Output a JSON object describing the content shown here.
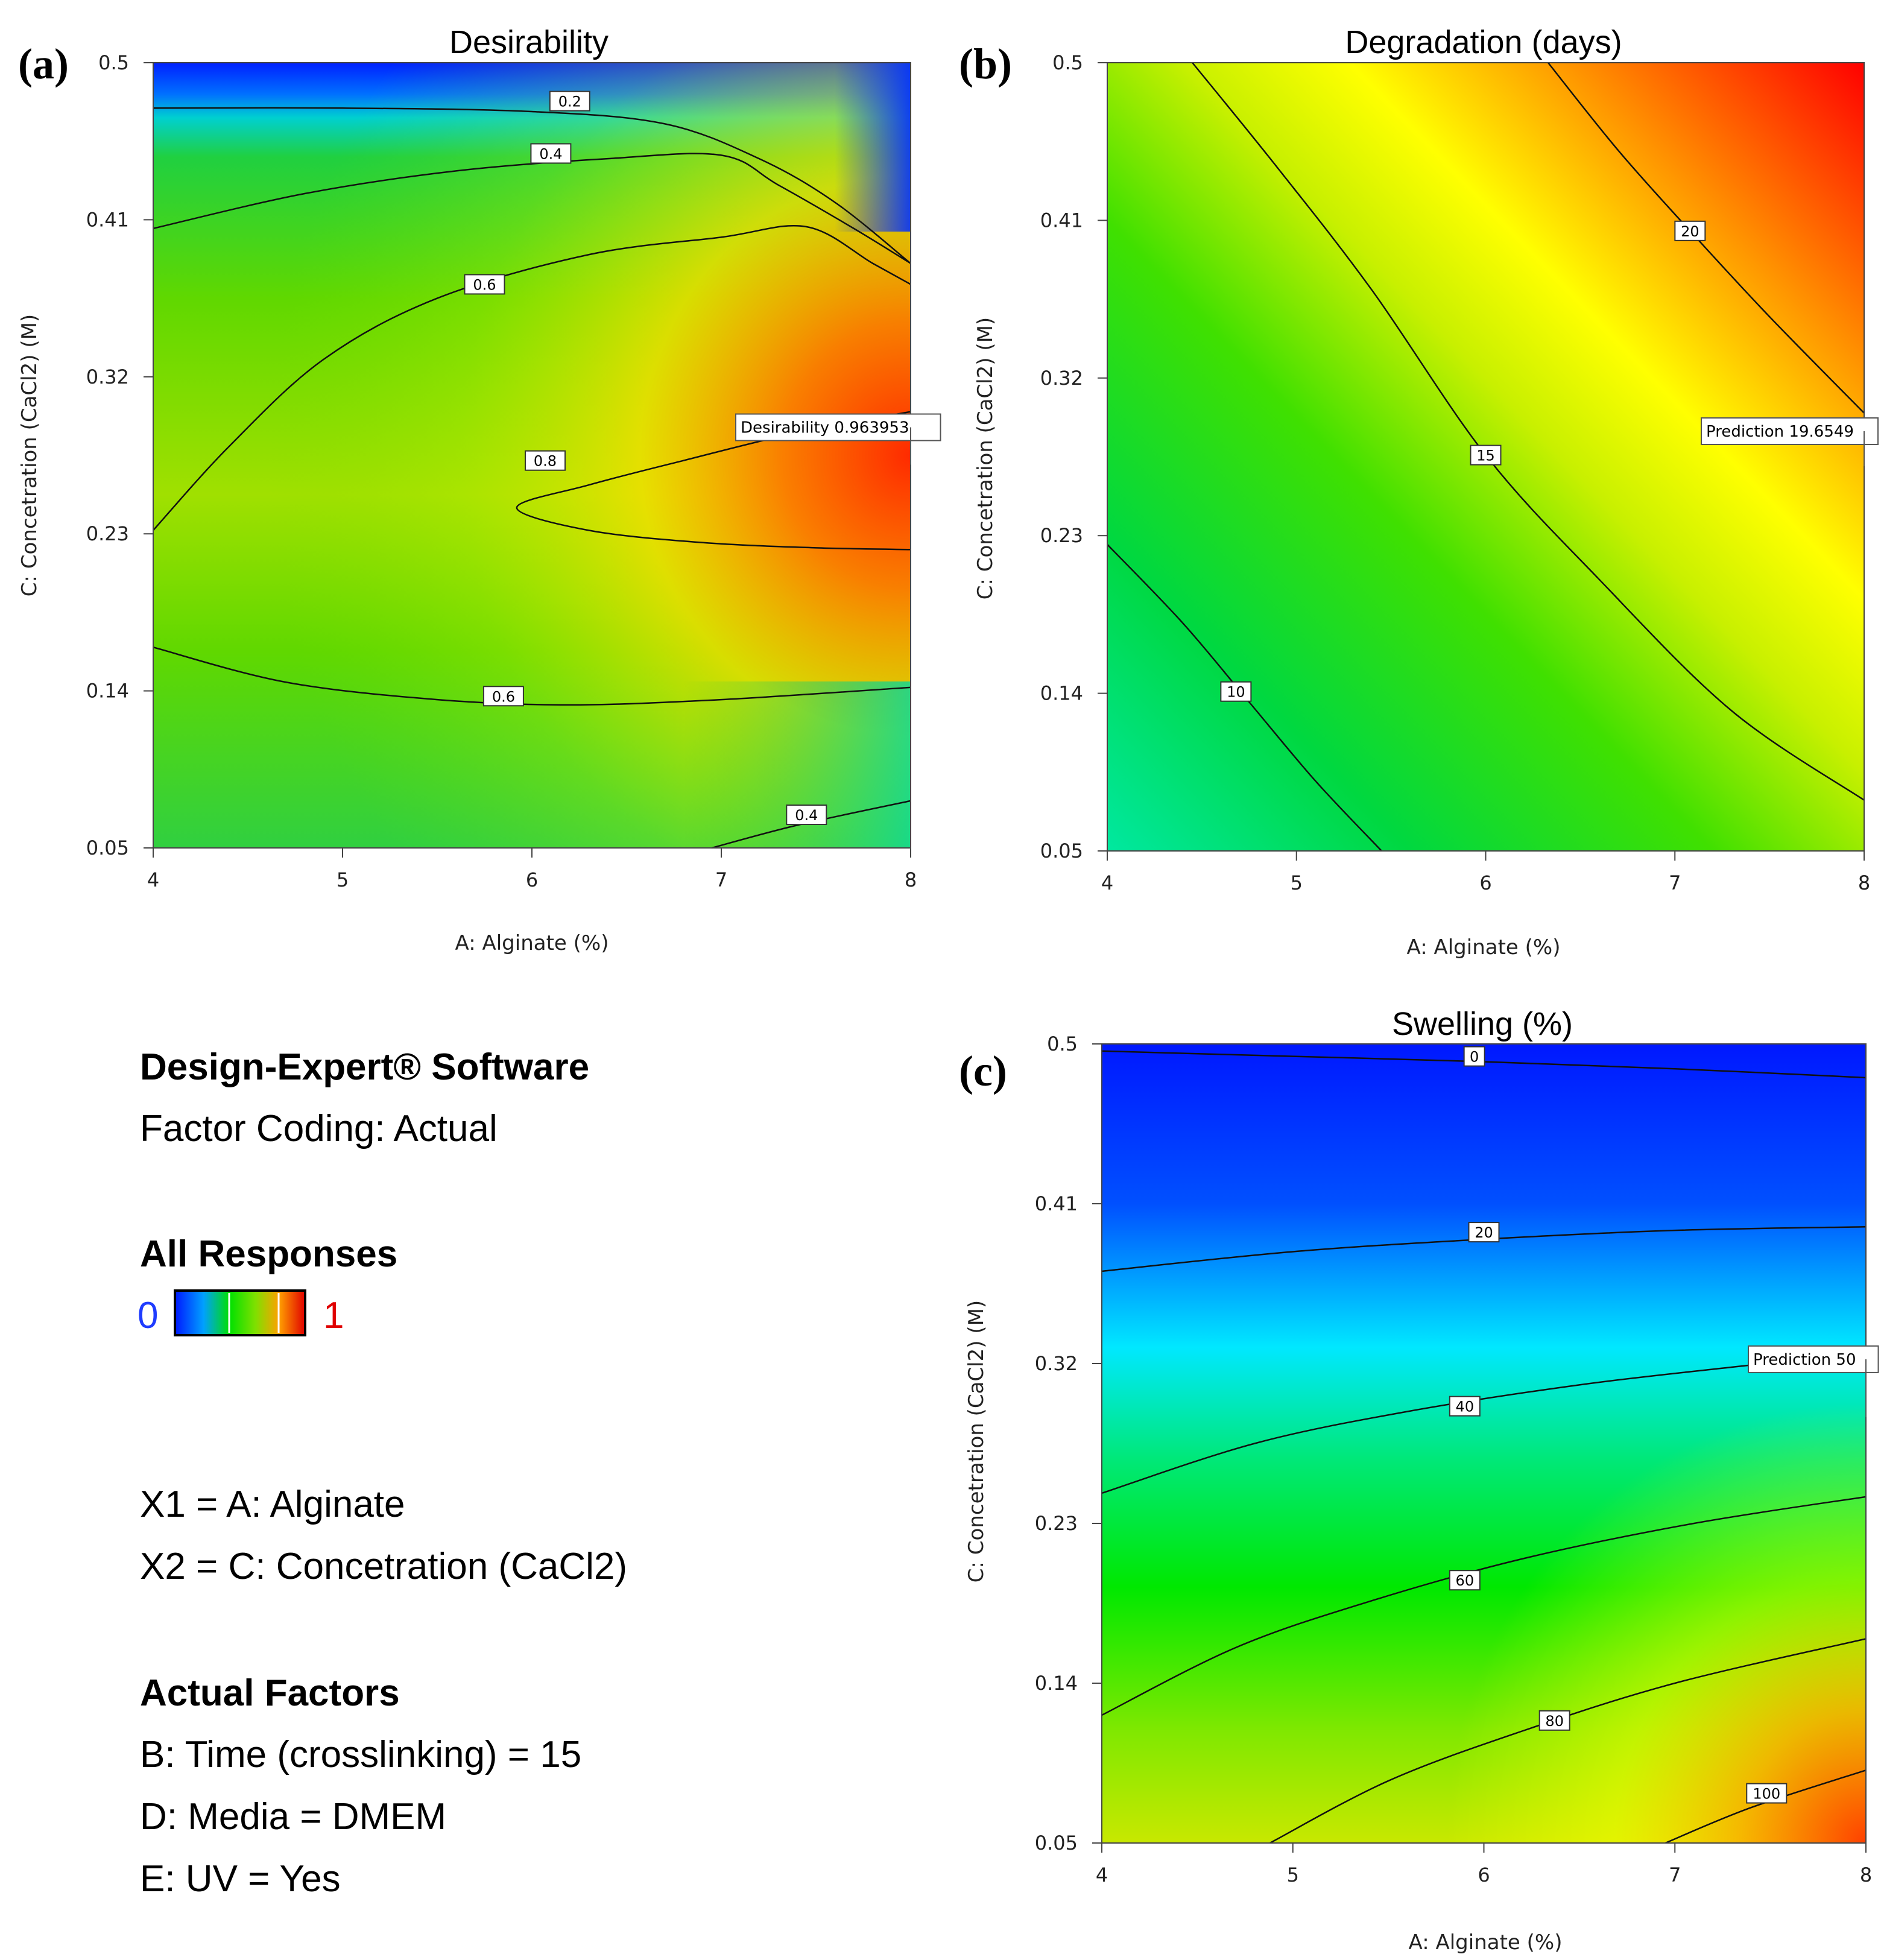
{
  "figure": {
    "software": "Design-Expert® Software",
    "factor_coding": "Factor Coding: Actual",
    "responses_heading": "All Responses",
    "colorbar": {
      "min_label": "0",
      "max_label": "1",
      "colors": [
        "#0018ff",
        "#00b0ff",
        "#00e000",
        "#80e000",
        "#e0e000",
        "#ff6000",
        "#e00000"
      ]
    },
    "x_def": "X1 = A: Alginate",
    "y_def": "X2 = C: Concetration (CaCl2)",
    "actual_factors_heading": "Actual Factors",
    "actual_factors": [
      "B: Time (crosslinking) = 15",
      "D: Media = DMEM",
      "E: UV = Yes"
    ]
  },
  "chart_data": [
    {
      "panel": "(a)",
      "type": "heatmap",
      "title": "Desirability",
      "xlabel": "A: Alginate (%)",
      "ylabel": "C: Concetration (CaCl2) (M)",
      "xlim": [
        4,
        8
      ],
      "ylim": [
        0.05,
        0.5
      ],
      "xticks": [
        "4",
        "5",
        "6",
        "7",
        "8"
      ],
      "yticks": [
        "0.05",
        "0.14",
        "0.23",
        "0.32",
        "0.41",
        "0.5"
      ],
      "contours": [
        {
          "label": "0.2",
          "label_at": [
            6.2,
            0.478
          ],
          "points": [
            [
              4,
              0.474
            ],
            [
              5,
              0.474
            ],
            [
              6,
              0.472
            ],
            [
              6.7,
              0.465
            ],
            [
              7.2,
              0.445
            ],
            [
              7.6,
              0.42
            ],
            [
              8,
              0.385
            ]
          ]
        },
        {
          "label": "0.4",
          "label_at": [
            6.1,
            0.448
          ],
          "points": [
            [
              4,
              0.405
            ],
            [
              4.8,
              0.425
            ],
            [
              5.6,
              0.438
            ],
            [
              6.4,
              0.445
            ],
            [
              7.0,
              0.447
            ],
            [
              7.3,
              0.43
            ],
            [
              7.7,
              0.405
            ],
            [
              8,
              0.385
            ]
          ]
        },
        {
          "label": "0.6",
          "label_at": [
            5.75,
            0.373
          ],
          "points": [
            [
              4,
              0.232
            ],
            [
              4.4,
              0.28
            ],
            [
              4.9,
              0.33
            ],
            [
              5.5,
              0.365
            ],
            [
              6.3,
              0.39
            ],
            [
              7.0,
              0.4
            ],
            [
              7.45,
              0.406
            ],
            [
              7.8,
              0.385
            ],
            [
              8,
              0.373
            ]
          ]
        },
        {
          "label": "0.8",
          "label_at": [
            6.07,
            0.272
          ],
          "points": [
            [
              8,
              0.3
            ],
            [
              7.4,
              0.288
            ],
            [
              6.8,
              0.272
            ],
            [
              6.3,
              0.258
            ],
            [
              5.92,
              0.245
            ],
            [
              6.3,
              0.232
            ],
            [
              6.9,
              0.225
            ],
            [
              7.5,
              0.222
            ],
            [
              8,
              0.221
            ]
          ]
        },
        {
          "label": "0.6",
          "label_at": [
            5.85,
            0.137
          ],
          "points": [
            [
              4,
              0.165
            ],
            [
              4.7,
              0.145
            ],
            [
              5.5,
              0.135
            ],
            [
              6.2,
              0.132
            ],
            [
              7.0,
              0.135
            ],
            [
              8,
              0.142
            ]
          ]
        },
        {
          "label": "0.4",
          "label_at": [
            7.45,
            0.069
          ],
          "points": [
            [
              6.95,
              0.05
            ],
            [
              7.4,
              0.063
            ],
            [
              8,
              0.077
            ]
          ]
        }
      ],
      "prediction_label": "Desirability 0.963953",
      "prediction_point": [
        8,
        0.28
      ]
    },
    {
      "panel": "(b)",
      "type": "heatmap",
      "title": "Degradation (days)",
      "xlabel": "A: Alginate (%)",
      "ylabel": "C: Concetration (CaCl2) (M)",
      "xlim": [
        4,
        8
      ],
      "ylim": [
        0.05,
        0.5
      ],
      "xticks": [
        "4",
        "5",
        "6",
        "7",
        "8"
      ],
      "yticks": [
        "0.05",
        "0.14",
        "0.23",
        "0.32",
        "0.41",
        "0.5"
      ],
      "contours": [
        {
          "label": "10",
          "label_at": [
            4.68,
            0.141
          ],
          "points": [
            [
              4,
              0.225
            ],
            [
              4.4,
              0.18
            ],
            [
              4.75,
              0.135
            ],
            [
              5.1,
              0.09
            ],
            [
              5.45,
              0.05
            ]
          ]
        },
        {
          "label": "15",
          "label_at": [
            6.0,
            0.276
          ],
          "points": [
            [
              4.45,
              0.5
            ],
            [
              4.9,
              0.44
            ],
            [
              5.4,
              0.37
            ],
            [
              6.0,
              0.276
            ],
            [
              6.6,
              0.205
            ],
            [
              7.3,
              0.13
            ],
            [
              8,
              0.079
            ]
          ]
        },
        {
          "label": "20",
          "label_at": [
            7.08,
            0.404
          ],
          "points": [
            [
              6.33,
              0.5
            ],
            [
              6.7,
              0.45
            ],
            [
              7.08,
              0.404
            ],
            [
              7.5,
              0.355
            ],
            [
              8,
              0.3
            ]
          ]
        }
      ],
      "prediction_label": "Prediction 19.6549",
      "prediction_point": [
        8,
        0.28
      ]
    },
    {
      "panel": "(c)",
      "type": "heatmap",
      "title": "Swelling (%)",
      "xlabel": "A: Alginate (%)",
      "ylabel": "C: Concetration (CaCl2) (M)",
      "xlim": [
        4,
        8
      ],
      "ylim": [
        0.05,
        0.5
      ],
      "xticks": [
        "4",
        "5",
        "6",
        "7",
        "8"
      ],
      "yticks": [
        "0.05",
        "0.14",
        "0.23",
        "0.32",
        "0.41",
        "0.5"
      ],
      "contours": [
        {
          "label": "0",
          "label_at": [
            5.95,
            0.493
          ],
          "points": [
            [
              4,
              0.496
            ],
            [
              5,
              0.493
            ],
            [
              6,
              0.49
            ],
            [
              7,
              0.486
            ],
            [
              8,
              0.481
            ]
          ]
        },
        {
          "label": "20",
          "label_at": [
            6.0,
            0.394
          ],
          "points": [
            [
              4,
              0.372
            ],
            [
              5,
              0.383
            ],
            [
              6,
              0.39
            ],
            [
              7,
              0.395
            ],
            [
              8,
              0.397
            ]
          ]
        },
        {
          "label": "40",
          "label_at": [
            5.9,
            0.296
          ],
          "points": [
            [
              4,
              0.247
            ],
            [
              4.8,
              0.275
            ],
            [
              5.6,
              0.293
            ],
            [
              6.5,
              0.308
            ],
            [
              7.3,
              0.318
            ],
            [
              8,
              0.326
            ]
          ]
        },
        {
          "label": "60",
          "label_at": [
            5.9,
            0.198
          ],
          "points": [
            [
              4,
              0.122
            ],
            [
              4.7,
              0.16
            ],
            [
              5.4,
              0.186
            ],
            [
              6.2,
              0.21
            ],
            [
              7.1,
              0.23
            ],
            [
              8,
              0.245
            ]
          ]
        },
        {
          "label": "80",
          "label_at": [
            6.37,
            0.119
          ],
          "points": [
            [
              4.88,
              0.05
            ],
            [
              5.5,
              0.085
            ],
            [
              6.2,
              0.113
            ],
            [
              7.0,
              0.14
            ],
            [
              8,
              0.165
            ]
          ]
        },
        {
          "label": "100",
          "label_at": [
            7.48,
            0.078
          ],
          "points": [
            [
              6.95,
              0.05
            ],
            [
              7.4,
              0.07
            ],
            [
              8,
              0.091
            ]
          ]
        }
      ],
      "prediction_label": "Prediction 50",
      "prediction_point": [
        8,
        0.3
      ]
    }
  ]
}
